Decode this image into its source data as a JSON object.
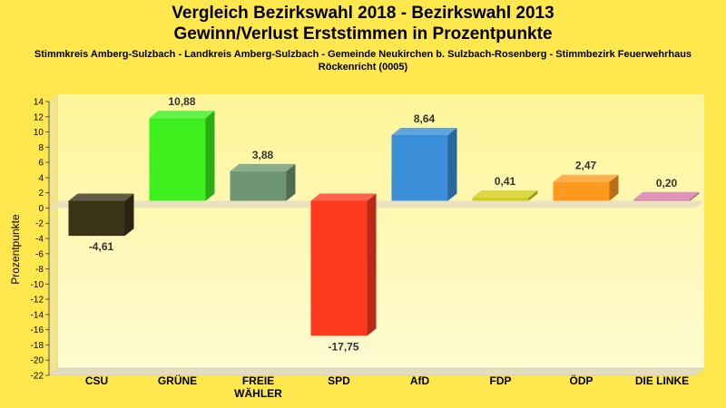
{
  "header": {
    "title_line1": "Vergleich Bezirkswahl 2018 - Bezirkswahl 2013",
    "title_line2": "Gewinn/Verlust Erststimmen in Prozentpunkte",
    "subtitle_line1": "Stimmkreis Amberg-Sulzbach - Landkreis Amberg-Sulzbach - Gemeinde Neukirchen b. Sulzbach-Rosenberg - Stimmbezirk Feuerwehrhaus",
    "subtitle_line2": "Röckenricht (0005)"
  },
  "chart_data": {
    "type": "bar",
    "ylabel": "Prozentpunkte",
    "ylim": [
      -22,
      14
    ],
    "ytick_step": 2,
    "grid": false,
    "categories": [
      [
        "CSU"
      ],
      [
        "GRÜNE"
      ],
      [
        "FREIE",
        "WÄHLER"
      ],
      [
        "SPD"
      ],
      [
        "AfD"
      ],
      [
        "FDP"
      ],
      [
        "ÖDP"
      ],
      [
        "DIE LINKE"
      ]
    ],
    "values": [
      -4.61,
      10.88,
      3.88,
      -17.75,
      8.64,
      0.41,
      2.47,
      0.2
    ],
    "value_labels": [
      "-4,61",
      "10,88",
      "3,88",
      "-17,75",
      "8,64",
      "0,41",
      "2,47",
      "0,20"
    ],
    "colors": [
      "#3a3318",
      "#3df01e",
      "#6e9672",
      "#ff3b1f",
      "#3a8fd8",
      "#cfcf1a",
      "#ff9a1e",
      "#d77aa8"
    ]
  }
}
